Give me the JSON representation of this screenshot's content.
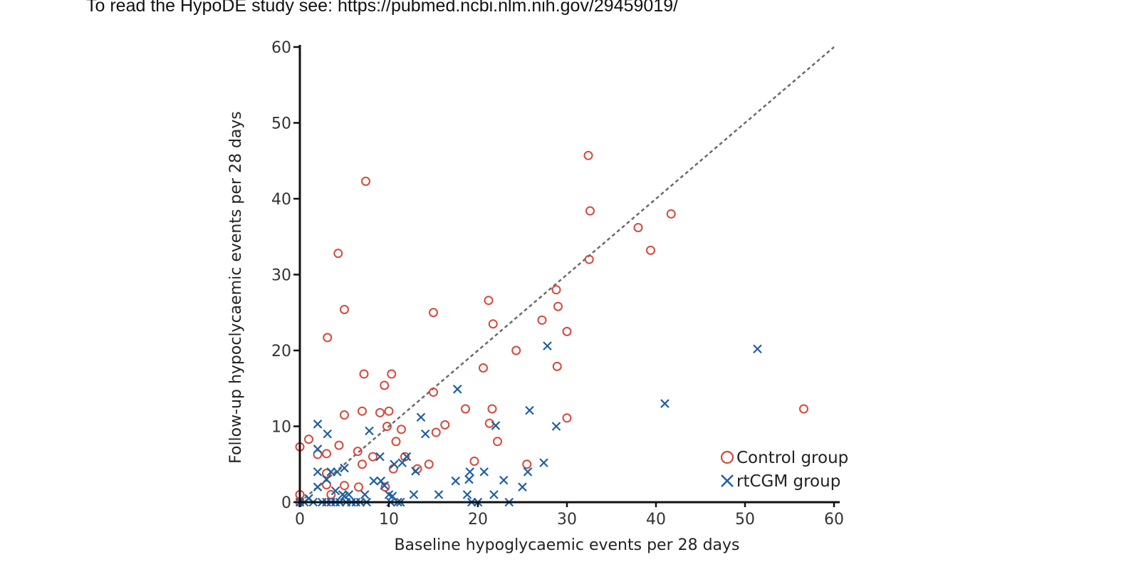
{
  "header": {
    "text": "To read the HypoDE study see:  https://pubmed.ncbi.nlm.nih.gov/29459019/"
  },
  "colors": {
    "control": "#d9473a",
    "rtcgm": "#1f5fa0",
    "axis": "#111111",
    "reference_line": "#6a6a6a"
  },
  "chart_data": {
    "type": "scatter",
    "xlabel": "Baseline hypoglycaemic events per 28 days",
    "ylabel": "Follow-up hypoclycaemic events per 28 days",
    "xlim": [
      0,
      60
    ],
    "ylim": [
      0,
      60
    ],
    "x_ticks": [
      0,
      10,
      20,
      30,
      40,
      50,
      60
    ],
    "y_ticks": [
      0,
      10,
      20,
      30,
      40,
      50,
      60
    ],
    "grid": false,
    "legend_position": "bottom-right",
    "reference_line": {
      "style": "dashed",
      "from": [
        0,
        0
      ],
      "to": [
        60,
        60
      ]
    },
    "series": [
      {
        "name": "Control group",
        "marker": "circle",
        "points": [
          [
            0,
            7.3
          ],
          [
            0,
            1
          ],
          [
            0,
            0
          ],
          [
            1,
            8.3
          ],
          [
            2,
            6.3
          ],
          [
            3,
            6.4
          ],
          [
            3,
            3.8
          ],
          [
            3,
            2.3
          ],
          [
            3.1,
            21.7
          ],
          [
            3.5,
            1
          ],
          [
            4.3,
            32.8
          ],
          [
            4.4,
            7.5
          ],
          [
            5,
            11.5
          ],
          [
            5,
            25.4
          ],
          [
            5,
            2.2
          ],
          [
            6.5,
            6.7
          ],
          [
            6.6,
            2
          ],
          [
            7,
            12
          ],
          [
            7,
            5
          ],
          [
            7.2,
            16.9
          ],
          [
            7.4,
            42.3
          ],
          [
            8.2,
            6
          ],
          [
            9,
            11.8
          ],
          [
            9.5,
            15.4
          ],
          [
            9.6,
            2
          ],
          [
            9.8,
            10
          ],
          [
            10,
            12
          ],
          [
            10.3,
            16.9
          ],
          [
            10.5,
            4.4
          ],
          [
            10.8,
            8
          ],
          [
            11.4,
            9.6
          ],
          [
            11.8,
            6
          ],
          [
            13.2,
            4.4
          ],
          [
            14.5,
            5
          ],
          [
            15,
            14.5
          ],
          [
            15,
            25
          ],
          [
            15.3,
            9.2
          ],
          [
            16.3,
            10.2
          ],
          [
            18.6,
            12.3
          ],
          [
            19.6,
            5.4
          ],
          [
            20.6,
            17.7
          ],
          [
            21.2,
            26.6
          ],
          [
            21.3,
            10.4
          ],
          [
            21.6,
            12.3
          ],
          [
            21.7,
            23.5
          ],
          [
            22.2,
            8
          ],
          [
            24.3,
            20
          ],
          [
            25.5,
            5
          ],
          [
            27.2,
            24
          ],
          [
            28.8,
            28
          ],
          [
            28.9,
            17.9
          ],
          [
            29,
            25.8
          ],
          [
            30,
            22.5
          ],
          [
            30,
            11.1
          ],
          [
            32.4,
            45.7
          ],
          [
            32.5,
            32
          ],
          [
            32.6,
            38.4
          ],
          [
            38,
            36.2
          ],
          [
            39.4,
            33.2
          ],
          [
            41.7,
            38
          ],
          [
            56.6,
            12.3
          ]
        ]
      },
      {
        "name": "rtCGM group",
        "marker": "x",
        "points": [
          [
            0,
            0
          ],
          [
            0.5,
            0
          ],
          [
            1,
            0.5
          ],
          [
            1.5,
            0
          ],
          [
            2,
            10.3
          ],
          [
            2,
            7
          ],
          [
            2,
            4
          ],
          [
            2,
            2
          ],
          [
            2.5,
            0
          ],
          [
            3,
            0
          ],
          [
            3,
            3
          ],
          [
            3.1,
            9
          ],
          [
            3.5,
            4
          ],
          [
            3.5,
            0
          ],
          [
            4,
            1.5
          ],
          [
            4,
            0
          ],
          [
            4.2,
            4
          ],
          [
            4.5,
            0
          ],
          [
            4.8,
            1
          ],
          [
            5,
            4.5
          ],
          [
            5,
            0.8
          ],
          [
            5.2,
            0
          ],
          [
            5.5,
            1
          ],
          [
            5.8,
            0
          ],
          [
            6.3,
            0
          ],
          [
            6.8,
            0
          ],
          [
            7.3,
            1
          ],
          [
            7.5,
            0
          ],
          [
            7.8,
            9.4
          ],
          [
            8.3,
            2.8
          ],
          [
            9,
            6
          ],
          [
            9.1,
            2.8
          ],
          [
            9.5,
            2.2
          ],
          [
            10,
            1
          ],
          [
            10.2,
            0
          ],
          [
            10.4,
            0.8
          ],
          [
            10.6,
            5
          ],
          [
            11,
            0
          ],
          [
            11.3,
            0
          ],
          [
            11.5,
            5.2
          ],
          [
            12,
            6
          ],
          [
            12.8,
            1
          ],
          [
            13,
            4.1
          ],
          [
            13.6,
            11.2
          ],
          [
            14.1,
            9
          ],
          [
            15.6,
            1
          ],
          [
            17.5,
            2.8
          ],
          [
            17.7,
            14.9
          ],
          [
            18.8,
            1
          ],
          [
            19,
            3
          ],
          [
            19.1,
            4
          ],
          [
            19.3,
            0
          ],
          [
            20,
            0
          ],
          [
            20.7,
            4
          ],
          [
            21.8,
            1
          ],
          [
            22,
            10.1
          ],
          [
            22.9,
            2.9
          ],
          [
            23.5,
            0
          ],
          [
            25,
            2
          ],
          [
            25.6,
            4
          ],
          [
            25.8,
            12.1
          ],
          [
            27.4,
            5.2
          ],
          [
            27.8,
            20.6
          ],
          [
            28.8,
            10
          ],
          [
            41,
            13
          ],
          [
            51.4,
            20.2
          ]
        ]
      }
    ]
  }
}
